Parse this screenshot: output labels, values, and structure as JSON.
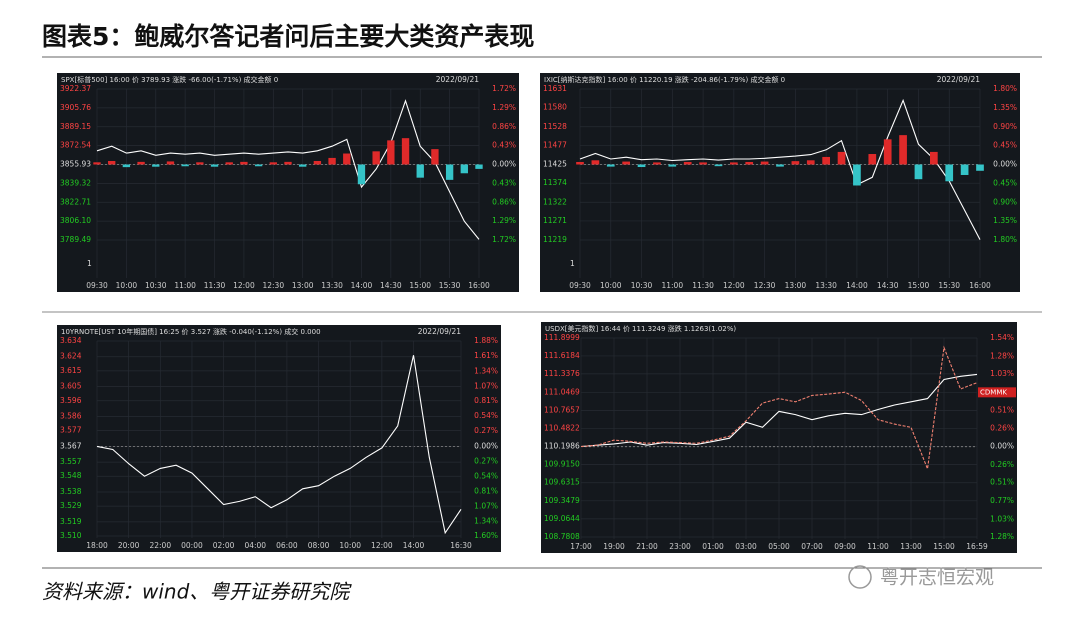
{
  "header": {
    "title": "图表5：鲍威尔答记者问后主要大类资产表现"
  },
  "footer": {
    "source": "资料来源：wind、粤开证券研究院",
    "watermark": "粤开志恒宏观"
  },
  "chart_data": [
    {
      "type": "line",
      "header": "SPX[标普500] 16:00 价 3789.93 涨跌 -66.00(-1.71%) 成交金额 0",
      "date": "2022/09/21",
      "grid": true,
      "categories": [
        "09:30",
        null,
        "10:00",
        null,
        "10:30",
        null,
        "11:00",
        null,
        "11:30",
        null,
        "12:00",
        null,
        "12:30",
        null,
        "13:00",
        null,
        "13:30",
        null,
        "14:00",
        null,
        "14:30",
        null,
        "15:00",
        null,
        "15:30",
        null,
        "16:00"
      ],
      "ylim": [
        3789.49,
        3922.37
      ],
      "yticks": [
        {
          "value": 3922.37,
          "label": "3922.37"
        },
        {
          "value": 3905.76,
          "label": "3905.76"
        },
        {
          "value": 3889.15,
          "label": "3889.15"
        },
        {
          "value": 3872.54,
          "label": "3872.54"
        },
        {
          "value": 3855.93,
          "label": "3855.93"
        },
        {
          "value": 3839.32,
          "label": "3839.32"
        },
        {
          "value": 3822.71,
          "label": "3822.71"
        },
        {
          "value": 3806.1,
          "label": "3806.10"
        },
        {
          "value": 3789.49,
          "label": "3789.49"
        }
      ],
      "y2lim": [
        -1.72,
        1.72
      ],
      "y2ticks": [
        {
          "value": 1.72,
          "label": "1.72%"
        },
        {
          "value": 1.29,
          "label": "1.29%"
        },
        {
          "value": 0.86,
          "label": "0.86%"
        },
        {
          "value": 0.43,
          "label": "0.43%"
        },
        {
          "value": 0,
          "label": "0.00%"
        },
        {
          "value": -0.43,
          "label": "0.43%"
        },
        {
          "value": -0.86,
          "label": "0.86%"
        },
        {
          "value": -1.29,
          "label": "1.29%"
        },
        {
          "value": -1.72,
          "label": "1.72%"
        }
      ],
      "volume_tick": 1,
      "up_color": "#e02a2a",
      "down_color": "#35c4c8",
      "series": [
        {
          "color": "#ffffff",
          "values": [
            3868,
            3872,
            3866,
            3868,
            3864,
            3866,
            3865,
            3866,
            3864,
            3865,
            3866,
            3865,
            3866,
            3867,
            3866,
            3868,
            3872,
            3878,
            3836,
            3852,
            3875,
            3912,
            3872,
            3858,
            3832,
            3806,
            3790
          ]
        },
        {
          "kind": "bar",
          "axis": "y2",
          "values": [
            0.05,
            0.08,
            -0.06,
            0.06,
            -0.05,
            0.07,
            -0.04,
            0.05,
            -0.05,
            0.05,
            0.06,
            -0.04,
            0.05,
            0.06,
            -0.05,
            0.08,
            0.15,
            0.25,
            -0.45,
            0.3,
            0.55,
            0.6,
            -0.3,
            0.35,
            -0.35,
            -0.2,
            -0.1
          ]
        }
      ]
    },
    {
      "type": "line",
      "header": "IXIC[纳斯达克指数] 16:00 价 11220.19 涨跌 -204.86(-1.79%) 成交金额 0",
      "date": "2022/09/21",
      "grid": true,
      "categories": [
        "09:30",
        null,
        "10:00",
        null,
        "10:30",
        null,
        "11:00",
        null,
        "11:30",
        null,
        "12:00",
        null,
        "12:30",
        null,
        "13:00",
        null,
        "13:30",
        null,
        "14:00",
        null,
        "14:30",
        null,
        "15:00",
        null,
        "15:30",
        null,
        "16:00"
      ],
      "ylim": [
        11219,
        11631
      ],
      "yticks": [
        11631,
        11580,
        11528,
        11477,
        11425,
        11374,
        11322,
        11271,
        11219
      ],
      "y2lim": [
        -1.8,
        1.8
      ],
      "y2ticks": [
        {
          "value": 1.8,
          "label": "1.80%"
        },
        {
          "value": 1.35,
          "label": "1.35%"
        },
        {
          "value": 0.9,
          "label": "0.90%"
        },
        {
          "value": 0.45,
          "label": "0.45%"
        },
        {
          "value": 0,
          "label": "0.00%"
        },
        {
          "value": -0.45,
          "label": "0.45%"
        },
        {
          "value": -0.9,
          "label": "0.90%"
        },
        {
          "value": -1.35,
          "label": "1.35%"
        },
        {
          "value": -1.8,
          "label": "1.80%"
        }
      ],
      "volume_tick": 1,
      "up_color": "#e02a2a",
      "down_color": "#35c4c8",
      "series": [
        {
          "color": "#ffffff",
          "values": [
            11440,
            11455,
            11440,
            11445,
            11438,
            11440,
            11436,
            11438,
            11440,
            11437,
            11440,
            11440,
            11442,
            11445,
            11448,
            11452,
            11465,
            11490,
            11370,
            11390,
            11500,
            11600,
            11480,
            11440,
            11380,
            11300,
            11220
          ]
        },
        {
          "kind": "bar",
          "axis": "y2",
          "values": [
            0.06,
            0.1,
            -0.05,
            0.07,
            -0.06,
            0.05,
            -0.05,
            0.06,
            0.05,
            -0.04,
            0.05,
            0.06,
            0.07,
            -0.05,
            0.08,
            0.1,
            0.18,
            0.3,
            -0.5,
            0.25,
            0.6,
            0.7,
            -0.35,
            0.3,
            -0.4,
            -0.25,
            -0.15
          ]
        }
      ]
    },
    {
      "type": "line",
      "header": "10YRNOTE[UST 10年期国债] 16:25 价 3.527 涨跌 -0.040(-1.12%) 成交 0.000",
      "date": "2022/09/21",
      "grid": true,
      "categories": [
        "18:00",
        null,
        "20:00",
        null,
        "22:00",
        null,
        "00:00",
        null,
        "02:00",
        null,
        "04:00",
        null,
        "06:00",
        null,
        "08:00",
        null,
        "10:00",
        null,
        "12:00",
        null,
        "14:00",
        null,
        null,
        "16:30"
      ],
      "ylim": [
        3.51,
        3.634
      ],
      "yticks": [
        3.634,
        3.624,
        3.615,
        3.605,
        3.596,
        3.586,
        3.577,
        3.567,
        3.557,
        3.548,
        3.538,
        3.529,
        3.519,
        {
          "value": 3.51,
          "label": "3.510"
        }
      ],
      "y2lim": [
        -1.6,
        1.88
      ],
      "y2ticks": [
        {
          "value": 1.88,
          "label": "1.88%"
        },
        {
          "value": 1.61,
          "label": "1.61%"
        },
        {
          "value": 1.34,
          "label": "1.34%"
        },
        {
          "value": 1.07,
          "label": "1.07%"
        },
        {
          "value": 0.81,
          "label": "0.81%"
        },
        {
          "value": 0.54,
          "label": "0.54%"
        },
        {
          "value": 0.27,
          "label": "0.27%"
        },
        {
          "value": 0,
          "label": "0.00%"
        },
        {
          "value": -0.27,
          "label": "0.27%"
        },
        {
          "value": -0.54,
          "label": "0.54%"
        },
        {
          "value": -0.81,
          "label": "0.81%"
        },
        {
          "value": -1.07,
          "label": "1.07%"
        },
        {
          "value": -1.34,
          "label": "1.34%"
        },
        {
          "value": -1.6,
          "label": "1.60%"
        }
      ],
      "series": [
        {
          "color": "#ffffff",
          "values": [
            3.567,
            3.565,
            3.556,
            3.548,
            3.553,
            3.555,
            3.55,
            3.54,
            3.53,
            3.532,
            3.535,
            3.528,
            3.533,
            3.54,
            3.542,
            3.548,
            3.553,
            3.56,
            3.566,
            3.58,
            3.625,
            3.56,
            3.512,
            3.527
          ]
        }
      ]
    },
    {
      "type": "line",
      "header": "USDX[美元指数] 16:44 价 111.3249 涨跌 1.1263(1.02%)",
      "grid": true,
      "tag": "CDMMK",
      "categories": [
        "17:00",
        null,
        "19:00",
        null,
        "21:00",
        null,
        "23:00",
        null,
        "01:00",
        null,
        "03:00",
        null,
        "05:00",
        null,
        "07:00",
        null,
        "09:00",
        null,
        "11:00",
        null,
        "13:00",
        null,
        "15:00",
        null,
        "16:59"
      ],
      "ylim": [
        108.7808,
        111.8999
      ],
      "yticks": [
        111.8999,
        111.6184,
        111.3376,
        111.0469,
        110.7657,
        110.4822,
        110.1986,
        {
          "value": 109.915,
          "label": "109.9150"
        },
        109.6315,
        109.3479,
        109.0644,
        108.7808
      ],
      "y2lim": [
        -1.28,
        1.54
      ],
      "y2ticks": [
        {
          "value": 1.54,
          "label": "1.54%"
        },
        {
          "value": 1.28,
          "label": "1.28%"
        },
        {
          "value": 1.03,
          "label": "1.03%"
        },
        {
          "value": 0.77,
          "label": "0.77%"
        },
        {
          "value": 0.51,
          "label": "0.51%"
        },
        {
          "value": 0.26,
          "label": "0.26%"
        },
        {
          "value": 0,
          "label": "0.00%"
        },
        {
          "value": -0.26,
          "label": "0.26%"
        },
        {
          "value": -0.51,
          "label": "0.51%"
        },
        {
          "value": -0.77,
          "label": "0.77%"
        },
        {
          "value": -1.03,
          "label": "1.03%"
        },
        {
          "value": -1.28,
          "label": "1.28%"
        }
      ],
      "series": [
        {
          "color": "#ffffff",
          "values": [
            110.2,
            110.22,
            110.24,
            110.27,
            110.22,
            110.26,
            110.25,
            110.23,
            110.28,
            110.33,
            110.58,
            110.5,
            110.75,
            110.7,
            110.62,
            110.68,
            110.72,
            110.7,
            110.78,
            110.85,
            110.9,
            110.95,
            111.25,
            111.3,
            111.33
          ]
        },
        {
          "color": "#f08070",
          "dash": true,
          "values": [
            110.2,
            110.22,
            110.3,
            110.28,
            110.25,
            110.27,
            110.26,
            110.25,
            110.3,
            110.36,
            110.6,
            110.88,
            110.95,
            110.9,
            111,
            111.02,
            111.05,
            110.92,
            110.62,
            110.55,
            110.5,
            109.85,
            111.75,
            111.1,
            111.2
          ]
        }
      ]
    }
  ]
}
